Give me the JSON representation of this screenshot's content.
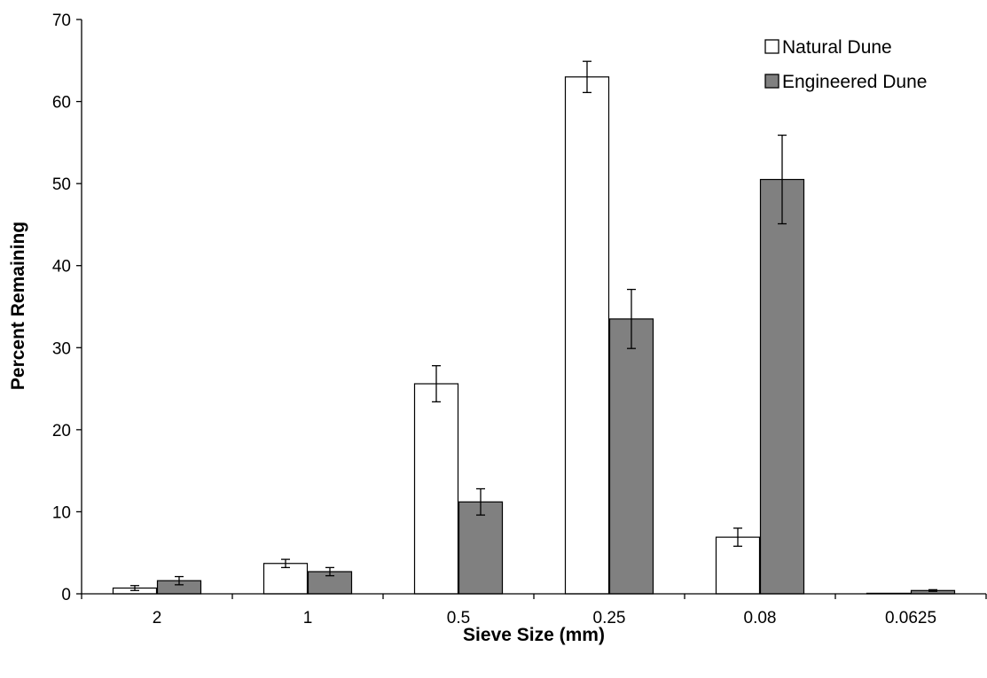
{
  "chart_data": {
    "type": "bar",
    "title": "",
    "xlabel": "Sieve Size (mm)",
    "ylabel": "Percent Remaining",
    "categories": [
      "2",
      "1",
      "0.5",
      "0.25",
      "0.08",
      "0.0625"
    ],
    "ylim": [
      0,
      70
    ],
    "yticks": [
      0,
      10,
      20,
      30,
      40,
      50,
      60,
      70
    ],
    "grid": false,
    "legend_position": "top-right",
    "series": [
      {
        "name": "Natural Dune",
        "color": "#ffffff",
        "values": [
          0.7,
          3.7,
          25.6,
          63.0,
          6.9,
          0.0
        ],
        "errors": [
          0.3,
          0.5,
          2.2,
          1.9,
          1.1,
          0.0
        ]
      },
      {
        "name": "Engineered Dune",
        "color": "#808080",
        "values": [
          1.6,
          2.7,
          11.2,
          33.5,
          50.5,
          0.4
        ],
        "errors": [
          0.5,
          0.5,
          1.6,
          3.6,
          5.4,
          0.1
        ]
      }
    ]
  }
}
